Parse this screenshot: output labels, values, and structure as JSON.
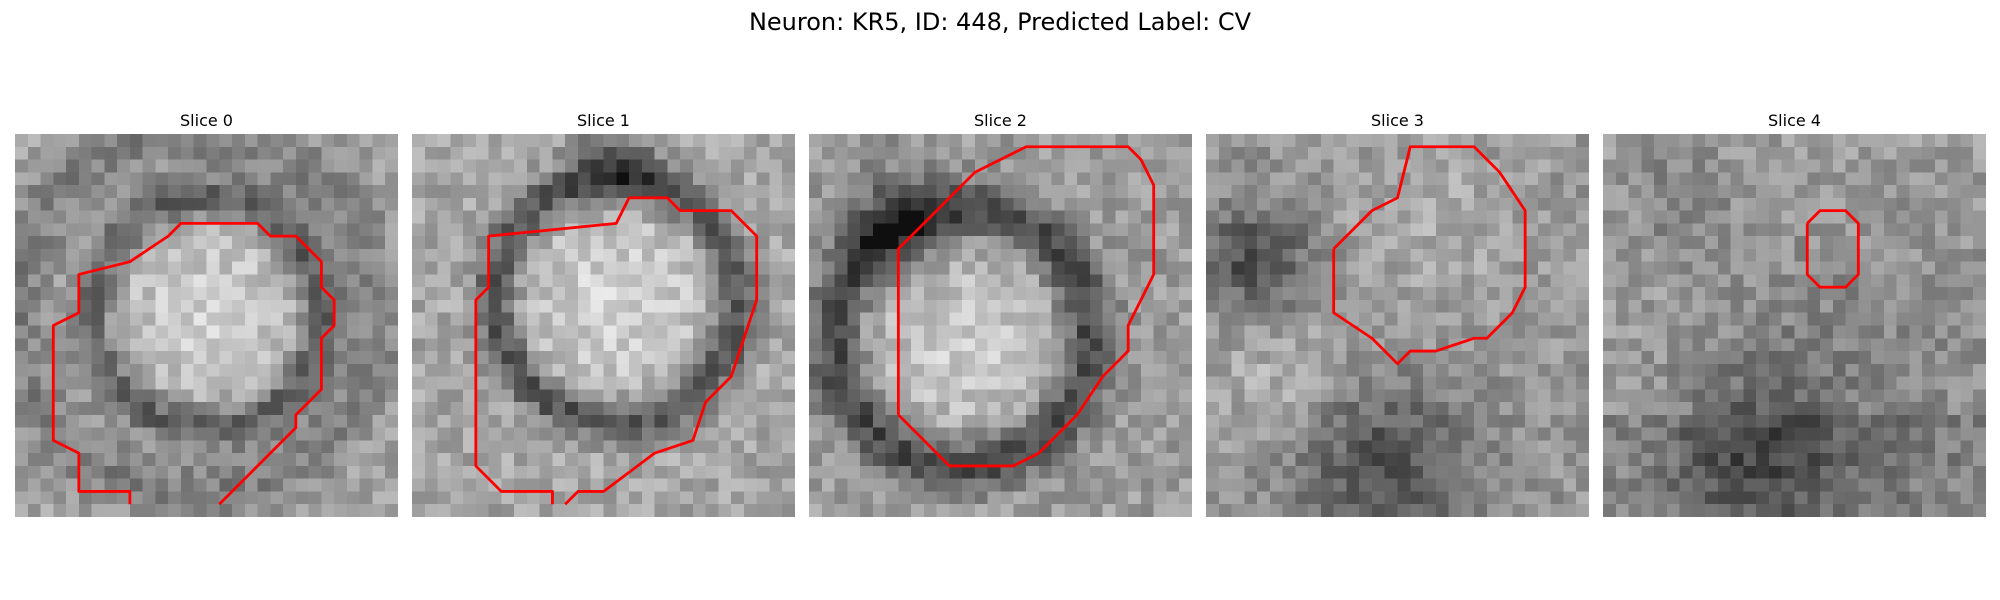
{
  "figure": {
    "title": "Neuron: KR5, ID: 448, Predicted Label: CV",
    "outline_color": "#ff0000"
  },
  "panels": [
    {
      "title": "Slice 0"
    },
    {
      "title": "Slice 1"
    },
    {
      "title": "Slice 2"
    },
    {
      "title": "Slice 3"
    },
    {
      "title": "Slice 4"
    }
  ]
}
